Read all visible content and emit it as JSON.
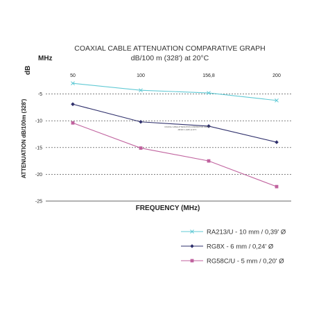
{
  "chart_data": {
    "type": "line",
    "title": "COAXIAL CABLE ATTENUATION COMPARATIVE GRAPH",
    "subtitle": "dB/100 m (328') at 20°C",
    "x_unit_label": "MHz",
    "y_unit_label": "dB",
    "xlabel": "FREQUENCY (MHz)",
    "ylabel": "ATTENUATION dB/100m (328')",
    "categories": [
      "50",
      "100",
      "156,8",
      "200"
    ],
    "x_axis_position": "top",
    "y_ticks": [
      "-5",
      "-10",
      "-15",
      "-20",
      "-25"
    ],
    "ylim": [
      -25,
      0
    ],
    "grid": "horizontal dashed",
    "legend_position": "bottom-right",
    "series": [
      {
        "name": "RA213/U - 10 mm / 0,39' Ø",
        "values": [
          -3,
          -4.3,
          -4.8,
          -6.2
        ],
        "color": "#5fc9d4",
        "marker": "x"
      },
      {
        "name": "RG8X - 6 mm / 0,24' Ø",
        "values": [
          -6.9,
          -10.2,
          -11,
          -14
        ],
        "color": "#2e2f6b",
        "marker": "diamond"
      },
      {
        "name": "RG58C/U - 5 mm / 0,20' Ø",
        "values": [
          -10.4,
          -15.1,
          -17.5,
          -22.3
        ],
        "color": "#c0629e",
        "marker": "square"
      }
    ],
    "annotation": [
      "COAXIAL CABLE ATTENUATION COMPARATIVE GRAPH",
      "dB/100 m (328') at 20°C"
    ]
  }
}
